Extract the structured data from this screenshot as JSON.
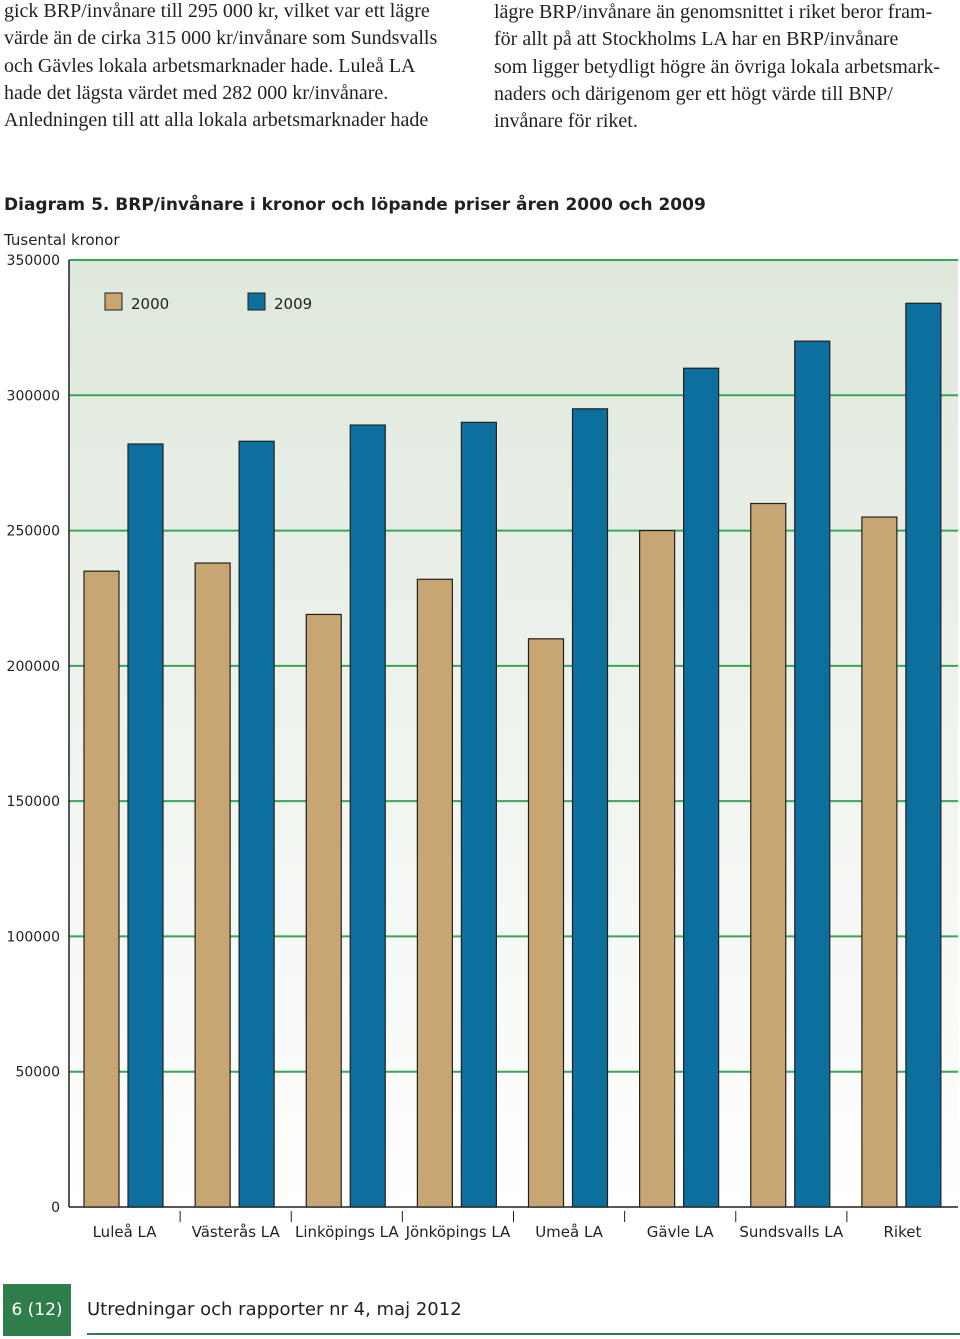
{
  "text": {
    "left": [
      "gick BRP/invånare till 295 000 kr, vilket var ett lägre",
      "värde än de cirka 315 000 kr/invånare som Sundsvalls",
      "och Gävles lokala arbetsmarknader hade. Luleå LA",
      "hade det lägsta värdet med 282 000 kr/invånare.",
      "Anledningen till att alla lokala arbetsmarknader hade"
    ],
    "right": [
      "lägre BRP/invånare än genomsnittet i riket beror fram-",
      "för allt på att Stockholms LA har en BRP/invånare",
      "som ligger betydligt högre än övriga lokala arbetsmark-",
      "naders och därigenom ger ett högt värde till BNP/",
      "invånare för riket."
    ]
  },
  "chart_data": {
    "type": "bar",
    "title": "Diagram 5. BRP/invånare i kronor och löpande priser åren 2000 och 2009",
    "ylabel": "Tusental kronor",
    "xlabel": "",
    "ylim": [
      0,
      350000
    ],
    "yticks": [
      0,
      50000,
      100000,
      150000,
      200000,
      250000,
      300000,
      350000
    ],
    "ytick_labels": [
      "0",
      "50000",
      "100000",
      "150000",
      "200000",
      "250000",
      "300000",
      "350000"
    ],
    "categories": [
      "Luleå LA",
      "Västerås LA",
      "Linköpings LA",
      "Jönköpings LA",
      "Umeå LA",
      "Gävle LA",
      "Sundsvalls LA",
      "Riket"
    ],
    "series": [
      {
        "name": "2000",
        "color": "#c8a673",
        "values": [
          235000,
          238000,
          219000,
          232000,
          210000,
          250000,
          260000,
          255000
        ]
      },
      {
        "name": "2009",
        "color": "#0c6f9e",
        "values": [
          282000,
          283000,
          289000,
          290000,
          295000,
          310000,
          320000,
          334000
        ]
      }
    ],
    "grid": true,
    "grid_color": "#3aa55a",
    "background_top": "#dfe8dc",
    "background_bottom": "#ffffff",
    "legend_position": "top-left"
  },
  "footer": {
    "page": "6 (12)",
    "text": "Utredningar och rapporter nr 4, maj 2012"
  }
}
